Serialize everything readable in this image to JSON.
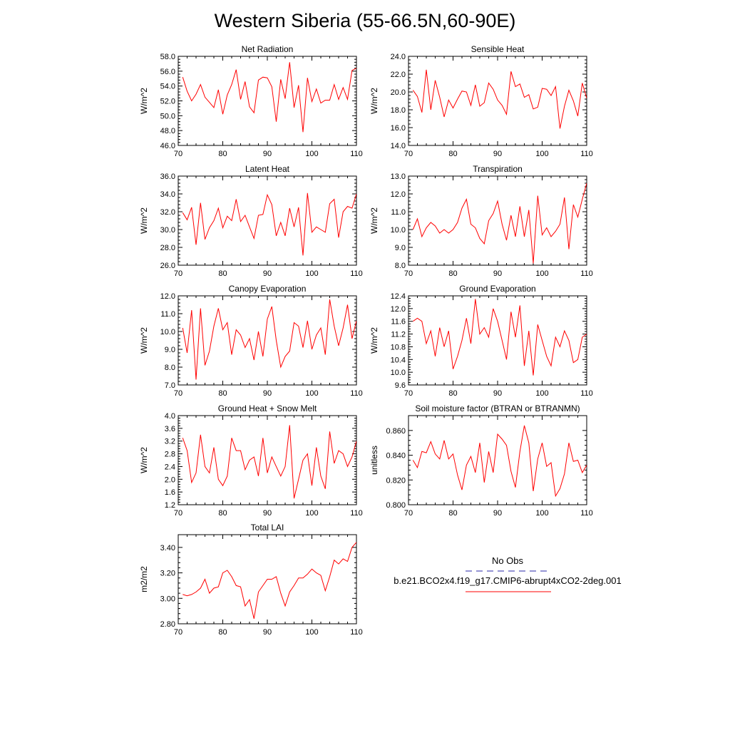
{
  "title": "Western Siberia (55-66.5N,60-90E)",
  "legend": {
    "items": [
      {
        "label": "No Obs",
        "color": "#2a2aa8",
        "style": "dashed"
      },
      {
        "label": "b.e21.BCO2x4.f19_g17.CMIP6-abrupt4xCO2-2deg.001",
        "color": "#ff0000",
        "style": "solid"
      }
    ]
  },
  "chart_data": [
    {
      "type": "line",
      "title": "Net Radiation",
      "ylabel": "W/m^2",
      "xlim": [
        70,
        110
      ],
      "ylim": [
        46,
        58
      ],
      "xticks": [
        70,
        80,
        90,
        100,
        110
      ],
      "xtick_labels": [
        "70",
        "80",
        "90",
        "100",
        "110"
      ],
      "yticks": [
        46,
        48,
        50,
        52,
        54,
        56,
        58
      ],
      "ytick_labels": [
        "46.0",
        "48.0",
        "50.0",
        "52.0",
        "54.0",
        "56.0",
        "58.0"
      ],
      "series": [
        {
          "color": "#ff0000",
          "x": [
            71,
            72,
            73,
            74,
            75,
            76,
            77,
            78,
            79,
            80,
            81,
            82,
            83,
            84,
            85,
            86,
            87,
            88,
            89,
            90,
            91,
            92,
            93,
            94,
            95,
            96,
            97,
            98,
            99,
            100,
            101,
            102,
            103,
            104,
            105,
            106,
            107,
            108,
            109,
            110
          ],
          "y": [
            55.2,
            53.3,
            52.0,
            52.9,
            54.2,
            52.5,
            51.8,
            51.1,
            53.5,
            50.2,
            52.8,
            54.2,
            56.2,
            52.2,
            54.6,
            51.2,
            50.4,
            54.8,
            55.2,
            55.1,
            53.9,
            49.2,
            54.9,
            52.3,
            57.2,
            51.1,
            54.1,
            47.8,
            55.1,
            51.9,
            53.6,
            51.7,
            52.1,
            52.1,
            54.2,
            52.2,
            53.8,
            52.2,
            56.1,
            56.4
          ]
        }
      ]
    },
    {
      "type": "line",
      "title": "Sensible Heat",
      "ylabel": "W/m^2",
      "xlim": [
        70,
        110
      ],
      "ylim": [
        14,
        24
      ],
      "xticks": [
        70,
        80,
        90,
        100,
        110
      ],
      "xtick_labels": [
        "70",
        "80",
        "90",
        "100",
        "110"
      ],
      "yticks": [
        14,
        16,
        18,
        20,
        22,
        24
      ],
      "ytick_labels": [
        "14.0",
        "16.0",
        "18.0",
        "20.0",
        "22.0",
        "24.0"
      ],
      "series": [
        {
          "color": "#ff0000",
          "x": [
            71,
            72,
            73,
            74,
            75,
            76,
            77,
            78,
            79,
            80,
            81,
            82,
            83,
            84,
            85,
            86,
            87,
            88,
            89,
            90,
            91,
            92,
            93,
            94,
            95,
            96,
            97,
            98,
            99,
            100,
            101,
            102,
            103,
            104,
            105,
            106,
            107,
            108,
            109,
            110
          ],
          "y": [
            20.2,
            19.5,
            17.7,
            22.5,
            18.0,
            21.3,
            19.4,
            17.2,
            19.1,
            18.2,
            19.2,
            20.1,
            20.0,
            18.5,
            20.8,
            18.4,
            18.8,
            21.0,
            20.3,
            19.1,
            18.5,
            17.5,
            22.3,
            20.6,
            20.9,
            19.4,
            19.7,
            18.1,
            18.3,
            20.4,
            20.3,
            19.6,
            20.6,
            15.9,
            18.4,
            20.2,
            19.0,
            17.3,
            21.0,
            19.3
          ]
        }
      ]
    },
    {
      "type": "line",
      "title": "Latent Heat",
      "ylabel": "W/m^2",
      "xlim": [
        70,
        110
      ],
      "ylim": [
        26,
        36
      ],
      "xticks": [
        70,
        80,
        90,
        100,
        110
      ],
      "xtick_labels": [
        "70",
        "80",
        "90",
        "100",
        "110"
      ],
      "yticks": [
        26,
        28,
        30,
        32,
        34,
        36
      ],
      "ytick_labels": [
        "26.0",
        "28.0",
        "30.0",
        "32.0",
        "34.0",
        "36.0"
      ],
      "series": [
        {
          "color": "#ff0000",
          "x": [
            71,
            72,
            73,
            74,
            75,
            76,
            77,
            78,
            79,
            80,
            81,
            82,
            83,
            84,
            85,
            86,
            87,
            88,
            89,
            90,
            91,
            92,
            93,
            94,
            95,
            96,
            97,
            98,
            99,
            100,
            101,
            102,
            103,
            104,
            105,
            106,
            107,
            108,
            109,
            110
          ],
          "y": [
            31.9,
            31.1,
            32.5,
            28.3,
            33.0,
            28.9,
            30.2,
            31.0,
            32.4,
            30.2,
            31.5,
            31.0,
            33.4,
            30.9,
            31.6,
            30.3,
            29.0,
            31.6,
            31.7,
            33.9,
            32.8,
            29.3,
            30.8,
            29.3,
            32.4,
            30.3,
            32.5,
            27.1,
            34.1,
            29.7,
            30.3,
            30.0,
            29.7,
            32.9,
            33.4,
            29.1,
            32.0,
            32.6,
            32.4,
            34.0
          ]
        }
      ]
    },
    {
      "type": "line",
      "title": "Transpiration",
      "ylabel": "W/m^2",
      "xlim": [
        70,
        110
      ],
      "ylim": [
        8,
        13
      ],
      "xticks": [
        70,
        80,
        90,
        100,
        110
      ],
      "xtick_labels": [
        "70",
        "80",
        "90",
        "100",
        "110"
      ],
      "yticks": [
        8,
        9,
        10,
        11,
        12,
        13
      ],
      "ytick_labels": [
        "8.0",
        "9.0",
        "10.0",
        "11.0",
        "12.0",
        "13.0"
      ],
      "series": [
        {
          "color": "#ff0000",
          "x": [
            71,
            72,
            73,
            74,
            75,
            76,
            77,
            78,
            79,
            80,
            81,
            82,
            83,
            84,
            85,
            86,
            87,
            88,
            89,
            90,
            91,
            92,
            93,
            94,
            95,
            96,
            97,
            98,
            99,
            100,
            101,
            102,
            103,
            104,
            105,
            106,
            107,
            108,
            109,
            110
          ],
          "y": [
            10.0,
            10.6,
            9.6,
            10.1,
            10.4,
            10.2,
            9.8,
            10.0,
            9.8,
            10.0,
            10.4,
            11.2,
            11.7,
            10.3,
            10.1,
            9.5,
            9.2,
            10.5,
            10.9,
            11.6,
            10.3,
            9.4,
            10.8,
            9.6,
            11.3,
            9.6,
            11.1,
            8.1,
            11.9,
            9.7,
            10.1,
            9.6,
            9.9,
            10.3,
            11.8,
            8.9,
            11.4,
            10.7,
            11.7,
            12.6
          ]
        }
      ]
    },
    {
      "type": "line",
      "title": "Canopy Evaporation",
      "ylabel": "W/m^2",
      "xlim": [
        70,
        110
      ],
      "ylim": [
        7,
        12
      ],
      "xticks": [
        70,
        80,
        90,
        100,
        110
      ],
      "xtick_labels": [
        "70",
        "80",
        "90",
        "100",
        "110"
      ],
      "yticks": [
        7,
        8,
        9,
        10,
        11,
        12
      ],
      "ytick_labels": [
        "7.0",
        "8.0",
        "9.0",
        "10.0",
        "11.0",
        "12.0"
      ],
      "series": [
        {
          "color": "#ff0000",
          "x": [
            71,
            72,
            73,
            74,
            75,
            76,
            77,
            78,
            79,
            80,
            81,
            82,
            83,
            84,
            85,
            86,
            87,
            88,
            89,
            90,
            91,
            92,
            93,
            94,
            95,
            96,
            97,
            98,
            99,
            100,
            101,
            102,
            103,
            104,
            105,
            106,
            107,
            108,
            109,
            110
          ],
          "y": [
            10.2,
            8.8,
            11.2,
            7.3,
            11.3,
            8.1,
            8.9,
            10.3,
            11.3,
            10.1,
            10.5,
            8.7,
            10.1,
            9.8,
            9.1,
            9.6,
            8.4,
            10.0,
            8.6,
            10.7,
            11.4,
            9.5,
            8.0,
            8.6,
            8.9,
            10.5,
            10.3,
            9.1,
            10.6,
            9.0,
            9.8,
            10.2,
            8.7,
            11.8,
            10.3,
            9.2,
            10.2,
            11.5,
            9.6,
            10.6
          ]
        }
      ]
    },
    {
      "type": "line",
      "title": "Ground Evaporation",
      "ylabel": "W/m^2",
      "xlim": [
        70,
        110
      ],
      "ylim": [
        9.6,
        12.4
      ],
      "xticks": [
        70,
        80,
        90,
        100,
        110
      ],
      "xtick_labels": [
        "70",
        "80",
        "90",
        "100",
        "110"
      ],
      "yticks": [
        9.6,
        10.0,
        10.4,
        10.8,
        11.2,
        11.6,
        12.0,
        12.4
      ],
      "ytick_labels": [
        "9.6",
        "10.0",
        "10.4",
        "10.8",
        "11.2",
        "11.6",
        "12.0",
        "12.4"
      ],
      "series": [
        {
          "color": "#ff0000",
          "x": [
            71,
            72,
            73,
            74,
            75,
            76,
            77,
            78,
            79,
            80,
            81,
            82,
            83,
            84,
            85,
            86,
            87,
            88,
            89,
            90,
            91,
            92,
            93,
            94,
            95,
            96,
            97,
            98,
            99,
            100,
            101,
            102,
            103,
            104,
            105,
            106,
            107,
            108,
            109,
            110
          ],
          "y": [
            11.6,
            11.7,
            11.6,
            10.9,
            11.3,
            10.5,
            11.4,
            10.8,
            11.3,
            10.1,
            10.5,
            11.0,
            11.7,
            10.9,
            12.3,
            11.2,
            11.4,
            11.1,
            12.0,
            11.6,
            11.0,
            10.4,
            11.9,
            11.1,
            12.1,
            10.2,
            11.3,
            9.9,
            11.5,
            11.0,
            10.5,
            10.2,
            11.1,
            10.8,
            11.3,
            11.0,
            10.3,
            10.4,
            11.1,
            11.2
          ]
        }
      ]
    },
    {
      "type": "line",
      "title": "Ground Heat + Snow Melt",
      "ylabel": "W/m^2",
      "xlim": [
        70,
        110
      ],
      "ylim": [
        1.2,
        4.0
      ],
      "xticks": [
        70,
        80,
        90,
        100,
        110
      ],
      "xtick_labels": [
        "70",
        "80",
        "90",
        "100",
        "110"
      ],
      "yticks": [
        1.2,
        1.6,
        2.0,
        2.4,
        2.8,
        3.2,
        3.6,
        4.0
      ],
      "ytick_labels": [
        "1.2",
        "1.6",
        "2.0",
        "2.4",
        "2.8",
        "3.2",
        "3.6",
        "4.0"
      ],
      "series": [
        {
          "color": "#ff0000",
          "x": [
            71,
            72,
            73,
            74,
            75,
            76,
            77,
            78,
            79,
            80,
            81,
            82,
            83,
            84,
            85,
            86,
            87,
            88,
            89,
            90,
            91,
            92,
            93,
            94,
            95,
            96,
            97,
            98,
            99,
            100,
            101,
            102,
            103,
            104,
            105,
            106,
            107,
            108,
            109,
            110
          ],
          "y": [
            3.3,
            2.9,
            1.9,
            2.2,
            3.4,
            2.4,
            2.2,
            3.0,
            2.0,
            1.8,
            2.1,
            3.3,
            2.9,
            2.9,
            2.3,
            2.6,
            2.7,
            2.1,
            3.3,
            2.2,
            2.7,
            2.4,
            2.1,
            2.4,
            3.7,
            1.4,
            2.0,
            2.6,
            2.8,
            1.8,
            3.0,
            2.1,
            1.7,
            3.5,
            2.5,
            2.9,
            2.8,
            2.4,
            2.7,
            3.2
          ]
        }
      ]
    },
    {
      "type": "line",
      "title": "Soil moisture factor (BTRAN or BTRANMN)",
      "ylabel": "unitless",
      "xlim": [
        70,
        110
      ],
      "ylim": [
        0.8,
        0.872
      ],
      "xticks": [
        70,
        80,
        90,
        100,
        110
      ],
      "xtick_labels": [
        "70",
        "80",
        "90",
        "100",
        "110"
      ],
      "yticks": [
        0.8,
        0.82,
        0.84,
        0.86
      ],
      "ytick_labels": [
        "0.800",
        "0.820",
        "0.840",
        "0.860"
      ],
      "series": [
        {
          "color": "#ff0000",
          "x": [
            71,
            72,
            73,
            74,
            75,
            76,
            77,
            78,
            79,
            80,
            81,
            82,
            83,
            84,
            85,
            86,
            87,
            88,
            89,
            90,
            91,
            92,
            93,
            94,
            95,
            96,
            97,
            98,
            99,
            100,
            101,
            102,
            103,
            104,
            105,
            106,
            107,
            108,
            109,
            110
          ],
          "y": [
            0.836,
            0.83,
            0.843,
            0.842,
            0.851,
            0.841,
            0.837,
            0.852,
            0.837,
            0.841,
            0.824,
            0.812,
            0.832,
            0.839,
            0.826,
            0.85,
            0.818,
            0.843,
            0.826,
            0.857,
            0.853,
            0.848,
            0.827,
            0.814,
            0.843,
            0.864,
            0.85,
            0.811,
            0.837,
            0.85,
            0.831,
            0.834,
            0.807,
            0.813,
            0.825,
            0.85,
            0.835,
            0.836,
            0.826,
            0.832
          ]
        }
      ]
    },
    {
      "type": "line",
      "title": "Total LAI",
      "ylabel": "m2/m2",
      "xlim": [
        70,
        110
      ],
      "ylim": [
        2.8,
        3.5
      ],
      "xticks": [
        70,
        80,
        90,
        100,
        110
      ],
      "xtick_labels": [
        "70",
        "80",
        "90",
        "100",
        "110"
      ],
      "yticks": [
        2.8,
        3.0,
        3.2,
        3.4
      ],
      "ytick_labels": [
        "2.80",
        "3.00",
        "3.20",
        "3.40"
      ],
      "series": [
        {
          "color": "#ff0000",
          "x": [
            71,
            72,
            73,
            74,
            75,
            76,
            77,
            78,
            79,
            80,
            81,
            82,
            83,
            84,
            85,
            86,
            87,
            88,
            89,
            90,
            91,
            92,
            93,
            94,
            95,
            96,
            97,
            98,
            99,
            100,
            101,
            102,
            103,
            104,
            105,
            106,
            107,
            108,
            109,
            110
          ],
          "y": [
            3.03,
            3.02,
            3.03,
            3.05,
            3.08,
            3.15,
            3.04,
            3.08,
            3.09,
            3.2,
            3.22,
            3.17,
            3.1,
            3.09,
            2.94,
            2.99,
            2.84,
            3.05,
            3.1,
            3.15,
            3.15,
            3.17,
            3.04,
            2.94,
            3.05,
            3.1,
            3.16,
            3.16,
            3.19,
            3.23,
            3.2,
            3.18,
            3.06,
            3.17,
            3.3,
            3.27,
            3.31,
            3.29,
            3.4,
            3.44
          ]
        }
      ]
    }
  ]
}
